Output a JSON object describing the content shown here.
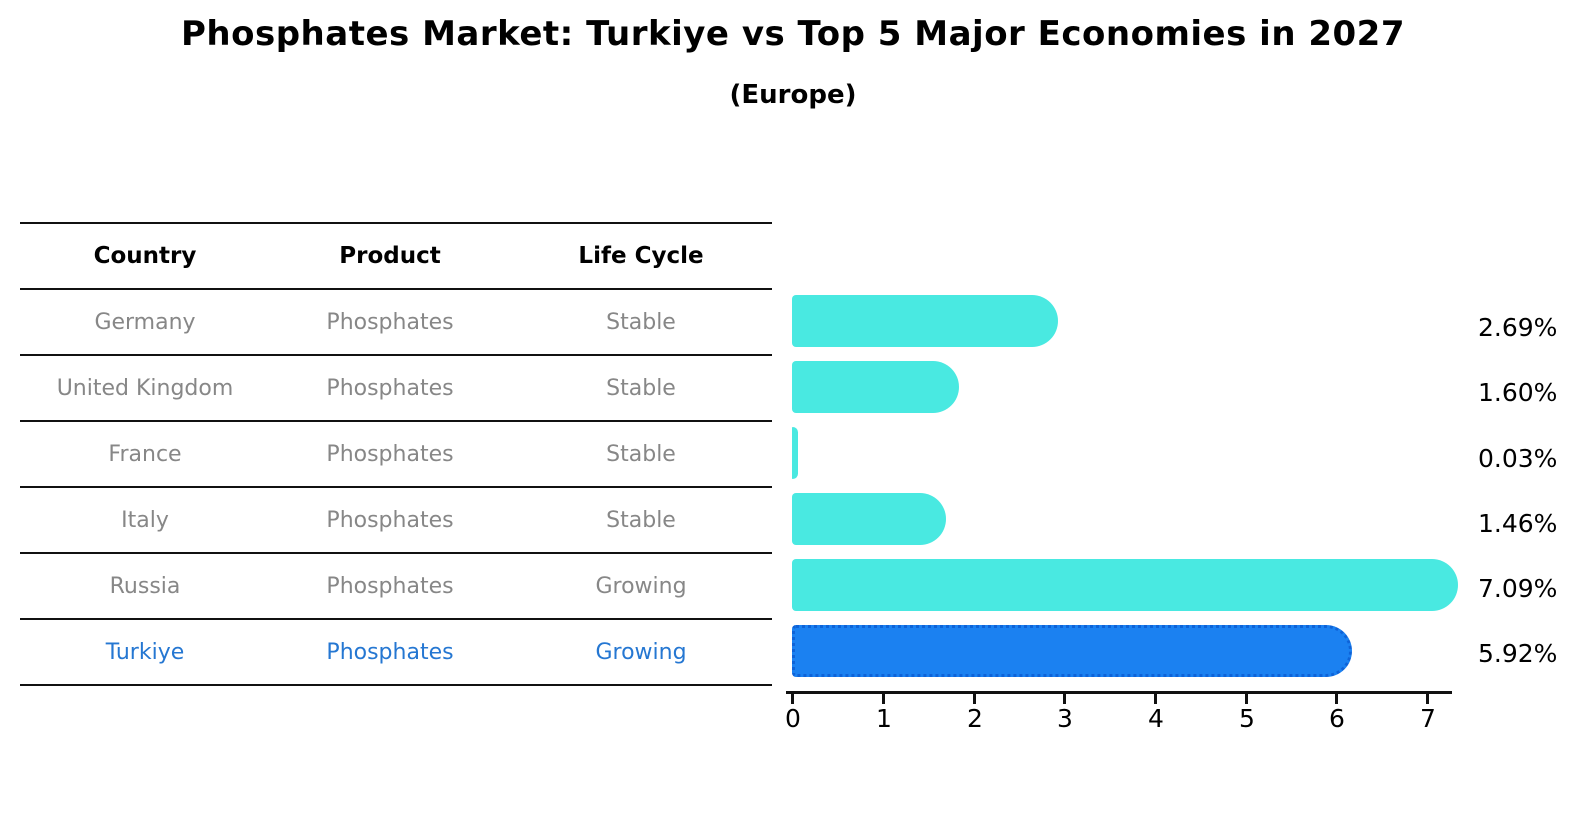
{
  "title": "Phosphates Market: Turkiye vs Top 5 Major Economies in 2027",
  "subtitle": "(Europe)",
  "table": {
    "headers": {
      "country": "Country",
      "product": "Product",
      "life_cycle": "Life Cycle"
    },
    "rows": [
      {
        "country": "Germany",
        "product": "Phosphates",
        "life_cycle": "Stable"
      },
      {
        "country": "United Kingdom",
        "product": "Phosphates",
        "life_cycle": "Stable"
      },
      {
        "country": "France",
        "product": "Phosphates",
        "life_cycle": "Stable"
      },
      {
        "country": "Italy",
        "product": "Phosphates",
        "life_cycle": "Stable"
      },
      {
        "country": "Russia",
        "product": "Phosphates",
        "life_cycle": "Growing"
      },
      {
        "country": "Turkiye",
        "product": "Phosphates",
        "life_cycle": "Growing"
      }
    ]
  },
  "chart_data": {
    "type": "bar",
    "orientation": "horizontal",
    "title": "Phosphates Market: Turkiye vs Top 5 Major Economies in 2027 (Europe)",
    "categories": [
      "Germany",
      "United Kingdom",
      "France",
      "Italy",
      "Russia",
      "Turkiye"
    ],
    "values": [
      2.69,
      1.6,
      0.03,
      1.46,
      7.09,
      5.92
    ],
    "value_labels": [
      "2.69%",
      "1.60%",
      "0.03%",
      "1.46%",
      "7.09%",
      "5.92%"
    ],
    "unit": "%",
    "x_ticks": [
      "0",
      "1",
      "2",
      "3",
      "4",
      "5",
      "6",
      "7"
    ],
    "xlim": [
      0,
      7.3
    ],
    "grid": false,
    "legend": "none",
    "highlight_index": 5,
    "colors": {
      "default": "#49E9E1",
      "highlight": "#1B81F1",
      "highlight_border": "#0E63D8"
    }
  }
}
